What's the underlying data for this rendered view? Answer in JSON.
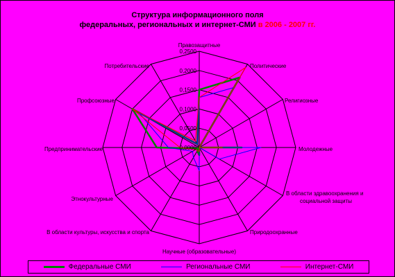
{
  "title": {
    "line1": "Структура информационного поля",
    "line2_main": "федеральных, региональных и интернет-СМИ",
    "line2_highlight": "в 2006 - 2007 гг."
  },
  "chart_data": {
    "type": "radar",
    "categories": [
      "Правозащитные",
      "Политические",
      "Религиозные",
      "Молодежные",
      "В области здравоохранения и социальной защиты",
      "Природоохранные",
      "Научные (образовательные)",
      "В области культуры, искусства и спорта",
      "Этнокультурные",
      "Предпринимательские",
      "Профсоюзные",
      "Потребительские"
    ],
    "rlim": [
      0,
      0.25
    ],
    "ticks": [
      "0,0000",
      "0,0500",
      "0,1000",
      "0,1500",
      "0,2000",
      "0,2500"
    ],
    "series": [
      {
        "name": "Федеральные СМИ",
        "color": "#008000",
        "width": 2.5,
        "values": [
          0.15,
          0.21,
          0.0,
          0.11,
          0.0,
          0.0,
          0.02,
          0.01,
          0.005,
          0.11,
          0.2,
          0.01
        ]
      },
      {
        "name": "Региональные СМИ",
        "color": "#0000ff",
        "width": 1,
        "values": [
          0.13,
          0.18,
          0.0,
          0.16,
          0.06,
          0.0,
          0.06,
          0.03,
          0.02,
          0.08,
          0.18,
          0.01
        ]
      },
      {
        "name": "Интернет-СМИ",
        "color": "#ff0000",
        "width": 1,
        "values": [
          0.13,
          0.24,
          0.0,
          0.06,
          0.0,
          0.0,
          0.01,
          0.01,
          0.01,
          0.05,
          0.2,
          0.02
        ]
      }
    ],
    "legend_position": "bottom",
    "grid": true
  }
}
